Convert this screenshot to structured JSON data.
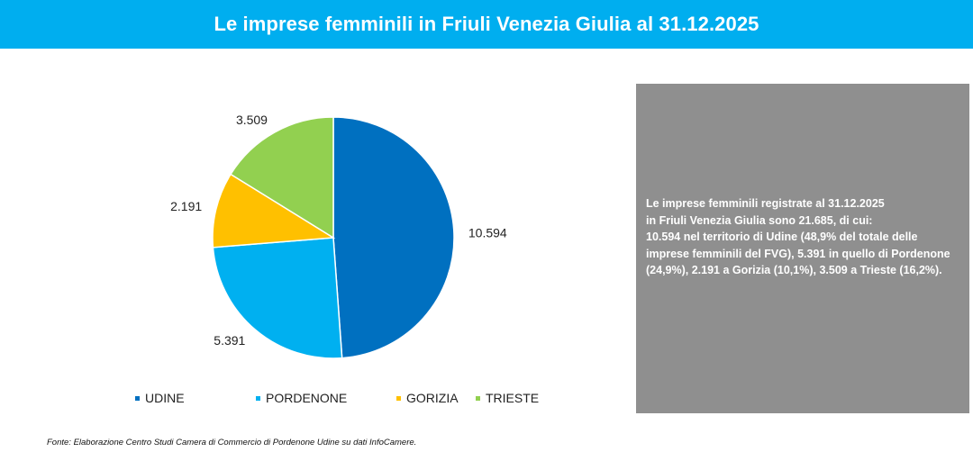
{
  "header": {
    "title": "Le imprese femminili in Friuli Venezia Giulia al 31.12.2025"
  },
  "chart_data": {
    "type": "pie",
    "categories": [
      "UDINE",
      "PORDENONE",
      "GORIZIA",
      "TRIESTE"
    ],
    "values": [
      10594,
      5391,
      2191,
      3509
    ],
    "value_labels": [
      "10.594",
      "5.391",
      "2.191",
      "3.509"
    ],
    "colors": [
      "#0070C0",
      "#00B0F0",
      "#FFC000",
      "#92D050"
    ],
    "legend_position": "bottom",
    "start_angle": "12 o'clock",
    "direction": "clockwise"
  },
  "info": {
    "text": "Le imprese femminili registrate al 31.12.2025\nin Friuli Venezia Giulia sono 21.685, di cui:\n10.594 nel territorio di Udine (48,9% del totale delle imprese femminili del FVG), 5.391 in quello di Pordenone (24,9%), 2.191 a Gorizia (10,1%), 3.509 a Trieste (16,2%)."
  },
  "source": {
    "text": "Fonte: Elaborazione Centro Studi Camera di Commercio di Pordenone Udine su dati InfoCamere."
  }
}
